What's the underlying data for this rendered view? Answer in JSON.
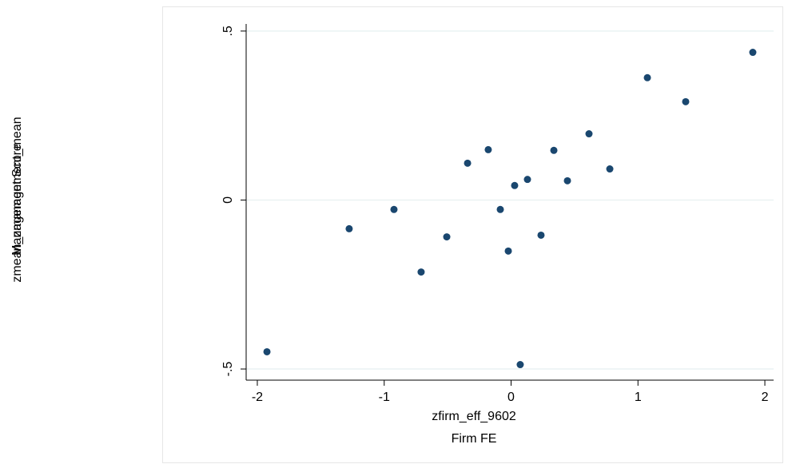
{
  "chart_data": {
    "type": "scatter",
    "x_label": "zfirm_eff_9602",
    "x_label_2": "Firm FE",
    "y_label": "zmean_zmanagement_mean",
    "y_label_2": "Management Score",
    "color": "#1a476f",
    "grid": true,
    "xlim": [
      -2.088,
      2.069
    ],
    "ylim": [
      -0.533,
      0.521
    ],
    "xticks": [
      -2,
      -1,
      0,
      1,
      2
    ],
    "yticks": [
      {
        "value": -0.5,
        "label": "-.5"
      },
      0,
      {
        "value": 0.5,
        "label": ".5"
      }
    ],
    "x": [
      -1.924,
      -1.276,
      -0.923,
      -0.709,
      -0.507,
      -0.343,
      -0.18,
      -0.085,
      -0.022,
      0.028,
      0.072,
      0.129,
      0.236,
      0.337,
      0.444,
      0.614,
      0.778,
      1.074,
      1.376,
      1.905
    ],
    "values": [
      -0.449,
      -0.085,
      -0.028,
      -0.213,
      -0.109,
      0.109,
      0.149,
      -0.028,
      -0.151,
      0.043,
      -0.487,
      0.061,
      -0.104,
      0.147,
      0.057,
      0.196,
      0.092,
      0.362,
      0.291,
      0.437
    ]
  }
}
